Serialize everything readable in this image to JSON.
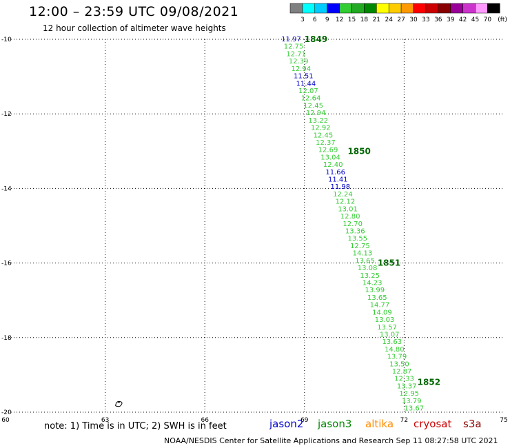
{
  "header": {
    "title": "12:00 – 23:59 UTC 09/08/2021",
    "subtitle": "12 hour collection of altimeter wave heights"
  },
  "colorbar": {
    "unit_label": "(ft)",
    "ticks": [
      "3",
      "6",
      "9",
      "12",
      "15",
      "18",
      "21",
      "24",
      "27",
      "30",
      "33",
      "36",
      "39",
      "42",
      "45",
      "70"
    ],
    "colors": [
      "#808080",
      "#00ffff",
      "#00ccff",
      "#0000ff",
      "#33cc33",
      "#22aa22",
      "#008800",
      "#ffff00",
      "#ffcc00",
      "#ff9900",
      "#ff0000",
      "#cc0000",
      "#880000",
      "#990099",
      "#cc33cc",
      "#ff99ff",
      "#000000"
    ]
  },
  "footer": {
    "note": "note: 1) Time is in UTC; 2) SWH is in feet",
    "credit": "NOAA/NESDIS Center for Satellite Applications and Research    Sep 11 08:27:58 UTC 2021",
    "missions": {
      "jason2": "jason2",
      "jason3": "jason3",
      "altika": "altika",
      "cryosat": "cryosat",
      "s3a": "s3a"
    }
  },
  "chart_data": {
    "type": "scatter",
    "title": "12:00 – 23:59 UTC 09/08/2021",
    "subtitle": "12 hour collection of altimeter wave heights",
    "xlim": [
      60,
      75
    ],
    "ylim": [
      -20,
      -10
    ],
    "x_ticks": [
      "60",
      "63",
      "66",
      "69",
      "72",
      "75"
    ],
    "y_ticks": [
      "-10",
      "-12",
      "-14",
      "-16",
      "-18",
      "-20"
    ],
    "grid": true,
    "track": {
      "start": [
        68.6,
        -10.0
      ],
      "end": [
        72.3,
        -19.9
      ]
    },
    "swh_values": [
      {
        "v": "11.97",
        "c": "#0000cc"
      },
      {
        "v": "12.75",
        "c": "#33cc33"
      },
      {
        "v": "12.71",
        "c": "#33cc33"
      },
      {
        "v": "12.39",
        "c": "#33cc33"
      },
      {
        "v": "12.94",
        "c": "#33cc33"
      },
      {
        "v": "11.51",
        "c": "#0000cc"
      },
      {
        "v": "11.44",
        "c": "#0000cc"
      },
      {
        "v": "12.07",
        "c": "#33cc33"
      },
      {
        "v": "12.64",
        "c": "#33cc33"
      },
      {
        "v": "12.45",
        "c": "#33cc33"
      },
      {
        "v": "12.94",
        "c": "#33cc33"
      },
      {
        "v": "13.22",
        "c": "#33cc33"
      },
      {
        "v": "12.92",
        "c": "#33cc33"
      },
      {
        "v": "12.45",
        "c": "#33cc33"
      },
      {
        "v": "12.37",
        "c": "#33cc33"
      },
      {
        "v": "12.69",
        "c": "#33cc33"
      },
      {
        "v": "13.04",
        "c": "#33cc33"
      },
      {
        "v": "12.40",
        "c": "#33cc33"
      },
      {
        "v": "11.66",
        "c": "#0000cc"
      },
      {
        "v": "11.41",
        "c": "#0000cc"
      },
      {
        "v": "11.98",
        "c": "#0000cc"
      },
      {
        "v": "12.24",
        "c": "#33cc33"
      },
      {
        "v": "12.12",
        "c": "#33cc33"
      },
      {
        "v": "13.01",
        "c": "#33cc33"
      },
      {
        "v": "12.80",
        "c": "#33cc33"
      },
      {
        "v": "12.70",
        "c": "#33cc33"
      },
      {
        "v": "13.36",
        "c": "#33cc33"
      },
      {
        "v": "13.55",
        "c": "#33cc33"
      },
      {
        "v": "12.75",
        "c": "#33cc33"
      },
      {
        "v": "14.13",
        "c": "#33cc33"
      },
      {
        "v": "13.65",
        "c": "#33cc33"
      },
      {
        "v": "13.08",
        "c": "#33cc33"
      },
      {
        "v": "13.25",
        "c": "#33cc33"
      },
      {
        "v": "14.23",
        "c": "#33cc33"
      },
      {
        "v": "13.99",
        "c": "#33cc33"
      },
      {
        "v": "13.65",
        "c": "#33cc33"
      },
      {
        "v": "14.77",
        "c": "#33cc33"
      },
      {
        "v": "14.09",
        "c": "#33cc33"
      },
      {
        "v": "13.03",
        "c": "#33cc33"
      },
      {
        "v": "13.57",
        "c": "#33cc33"
      },
      {
        "v": "13.07",
        "c": "#33cc33"
      },
      {
        "v": "13.63",
        "c": "#33cc33"
      },
      {
        "v": "14.80",
        "c": "#33cc33"
      },
      {
        "v": "13.79",
        "c": "#33cc33"
      },
      {
        "v": "13.50",
        "c": "#33cc33"
      },
      {
        "v": "12.87",
        "c": "#33cc33"
      },
      {
        "v": "12.33",
        "c": "#33cc33"
      },
      {
        "v": "13.37",
        "c": "#33cc33"
      },
      {
        "v": "12.95",
        "c": "#33cc33"
      },
      {
        "v": "13.79",
        "c": "#33cc33"
      },
      {
        "v": "13.67",
        "c": "#33cc33"
      }
    ],
    "time_labels": [
      {
        "label": "1849",
        "lon": 69.0,
        "lat": -10.0
      },
      {
        "label": "1850",
        "lon": 70.3,
        "lat": -13.0
      },
      {
        "label": "1851",
        "lon": 71.2,
        "lat": -16.0
      },
      {
        "label": "1852",
        "lon": 72.4,
        "lat": -19.2
      }
    ]
  }
}
